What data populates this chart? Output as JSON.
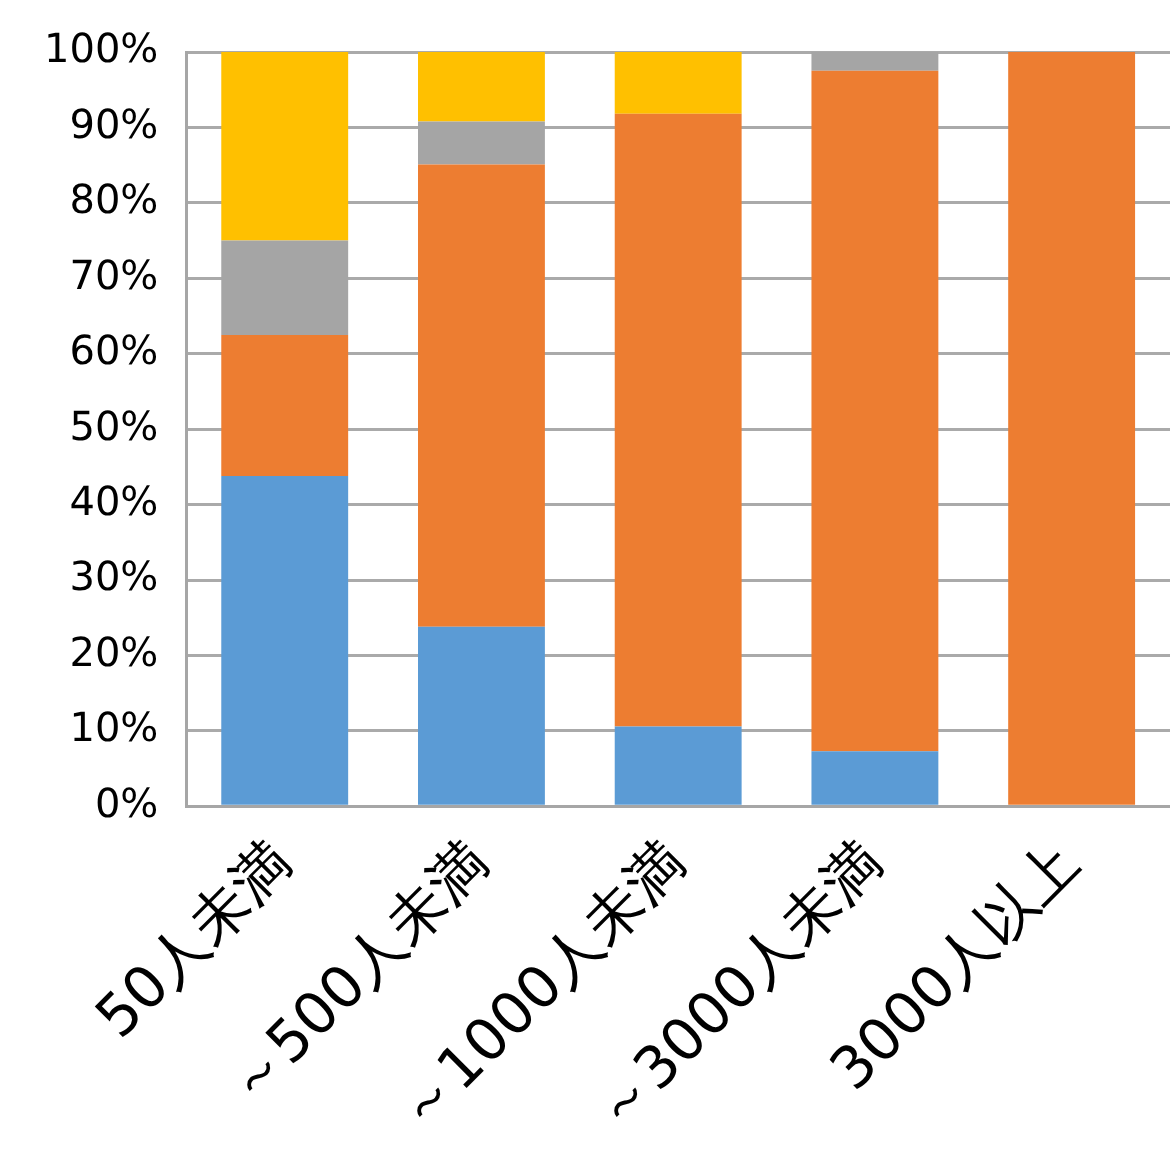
{
  "chart_data": {
    "type": "bar",
    "stacked": true,
    "categories": [
      "50人未満",
      "～500人未満",
      "～1000人未満",
      "～3000人未満",
      "3000人以上"
    ],
    "series": [
      {
        "color": "#5b9bd5",
        "values": [
          43.8,
          23.8,
          10.6,
          7.3,
          0
        ]
      },
      {
        "color": "#ed7d31",
        "values": [
          18.7,
          61.3,
          81.2,
          90.2,
          100
        ]
      },
      {
        "color": "#a5a5a5",
        "values": [
          12.5,
          5.7,
          0,
          2.5,
          0
        ]
      },
      {
        "color": "#ffc000",
        "values": [
          25,
          9.2,
          8.2,
          0,
          0
        ]
      }
    ],
    "ylim": [
      0,
      100
    ],
    "yticks": [
      {
        "value": 0,
        "label": "0%"
      },
      {
        "value": 10,
        "label": "10%"
      },
      {
        "value": 20,
        "label": "20%"
      },
      {
        "value": 30,
        "label": "30%"
      },
      {
        "value": 40,
        "label": "40%"
      },
      {
        "value": 50,
        "label": "50%"
      },
      {
        "value": 60,
        "label": "60%"
      },
      {
        "value": 70,
        "label": "70%"
      },
      {
        "value": 80,
        "label": "80%"
      },
      {
        "value": 90,
        "label": "90%"
      },
      {
        "value": 100,
        "label": "100%"
      }
    ],
    "grid": "y",
    "legend": false
  }
}
